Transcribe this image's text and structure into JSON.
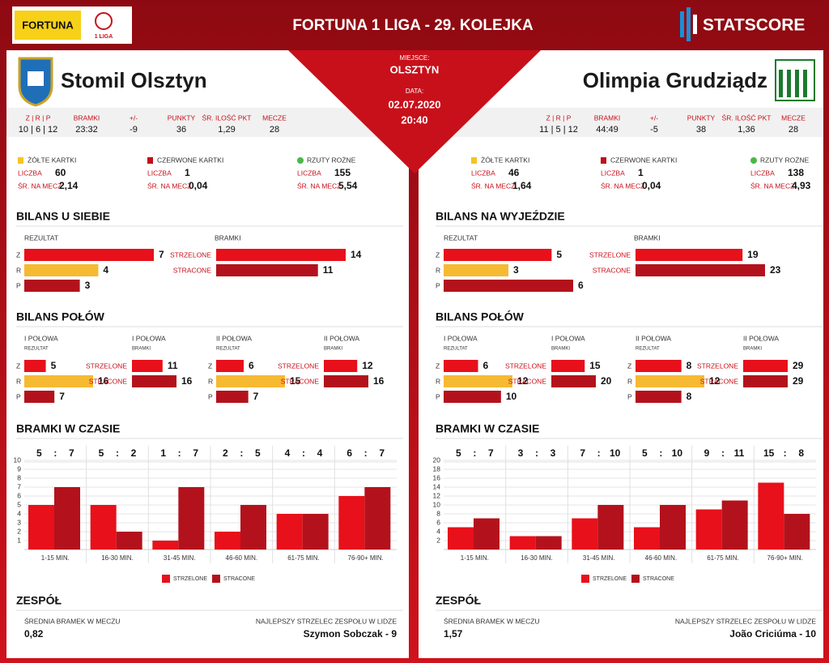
{
  "header": {
    "sponsor": "FORTUNA",
    "league": "1 LIGA",
    "title": "FORTUNA 1 LIGA - 29. KOLEJKA",
    "brand": "STATSCORE",
    "place_label": "MIEJSCE:",
    "place": "OLSZTYN",
    "date_label": "DATA:",
    "date": "02.07.2020",
    "time": "20:40"
  },
  "colors": {
    "win": "#e8101a",
    "draw": "#f6b932",
    "loss": "#b3121c"
  },
  "labels": {
    "stats": [
      "Z | R | P",
      "BRAMKI",
      "+/-",
      "PUNKTY",
      "ŚR. ILOŚĆ PKT",
      "MECZE"
    ],
    "cards": [
      "ŻÓŁTE KARTKI",
      "CZERWONE KARTKI",
      "RZUTY ROŻNE"
    ],
    "count": "LICZBA",
    "per_match": "ŚR. NA MECZ",
    "result": "REZULTAT",
    "goals": "BRAMKI",
    "zrp": [
      "Z",
      "R",
      "P"
    ],
    "scored": "STRZELONE",
    "conceded": "STRACONE",
    "halves_title": "BILANS POŁÓW",
    "halves": [
      "I POŁOWA",
      "I POŁOWA",
      "II POŁOWA",
      "II POŁOWA"
    ],
    "time_title": "BRAMKI W CZASIE",
    "score_separator": ":",
    "team_title": "ZESPÓŁ",
    "avg_goals": "ŚREDNIA BRAMEK W MECZU",
    "top_scorer": "NAJLEPSZY STRZELEC ZESPOŁU W LIDZE"
  },
  "teams": [
    {
      "name": "Stomil Olsztyn",
      "stats": [
        "10 | 6 | 12",
        "23:32",
        -9,
        36,
        "1,29",
        28
      ],
      "cards": [
        {
          "count": 60,
          "per_match": "2,14"
        },
        {
          "count": 1,
          "per_match": "0,04"
        },
        {
          "count": 155,
          "per_match": "5,54"
        }
      ],
      "bilans_title": "BILANS U SIEBIE",
      "result": [
        7,
        4,
        3
      ],
      "goals": [
        14,
        11
      ],
      "halves": [
        [
          5,
          16,
          7
        ],
        [
          11,
          16
        ],
        [
          6,
          15,
          7
        ],
        [
          12,
          16
        ]
      ],
      "time": {
        "type": "bar",
        "categories": [
          "1-15 MIN.",
          "16-30 MIN.",
          "31-45 MIN.",
          "46-60 MIN.",
          "61-75 MIN.",
          "76-90+ MIN."
        ],
        "series": [
          {
            "name": "STRZELONE",
            "color": "#e8101a",
            "values": [
              5,
              5,
              1,
              2,
              4,
              6
            ]
          },
          {
            "name": "STRACONE",
            "color": "#b3121c",
            "values": [
              7,
              2,
              7,
              5,
              4,
              7
            ]
          }
        ],
        "ylim": [
          0,
          10
        ],
        "yticks": [
          1,
          2,
          3,
          4,
          5,
          6,
          7,
          8,
          9,
          10
        ],
        "grid": true
      },
      "avg_goals": "0,82",
      "top_scorer": "Szymon Sobczak - 9"
    },
    {
      "name": "Olimpia Grudziądz",
      "stats": [
        "11 | 5 | 12",
        "44:49",
        -5,
        38,
        "1,36",
        28
      ],
      "cards": [
        {
          "count": 46,
          "per_match": "1,64"
        },
        {
          "count": 1,
          "per_match": "0,04"
        },
        {
          "count": 138,
          "per_match": "4,93"
        }
      ],
      "bilans_title": "BILANS NA WYJEŹDZIE",
      "result": [
        5,
        3,
        6
      ],
      "goals": [
        19,
        23
      ],
      "halves": [
        [
          6,
          12,
          10
        ],
        [
          15,
          20
        ],
        [
          8,
          12,
          8
        ],
        [
          29,
          29
        ]
      ],
      "time": {
        "type": "bar",
        "categories": [
          "1-15 MIN.",
          "16-30 MIN.",
          "31-45 MIN.",
          "46-60 MIN.",
          "61-75 MIN.",
          "76-90+ MIN."
        ],
        "series": [
          {
            "name": "STRZELONE",
            "color": "#e8101a",
            "values": [
              5,
              3,
              7,
              5,
              9,
              15
            ]
          },
          {
            "name": "STRACONE",
            "color": "#b3121c",
            "values": [
              7,
              3,
              10,
              10,
              11,
              8
            ]
          }
        ],
        "ylim": [
          0,
          20
        ],
        "yticks": [
          2,
          4,
          6,
          8,
          10,
          12,
          14,
          16,
          18,
          20
        ],
        "grid": true
      },
      "avg_goals": "1,57",
      "top_scorer": "João Criciúma - 10"
    }
  ]
}
